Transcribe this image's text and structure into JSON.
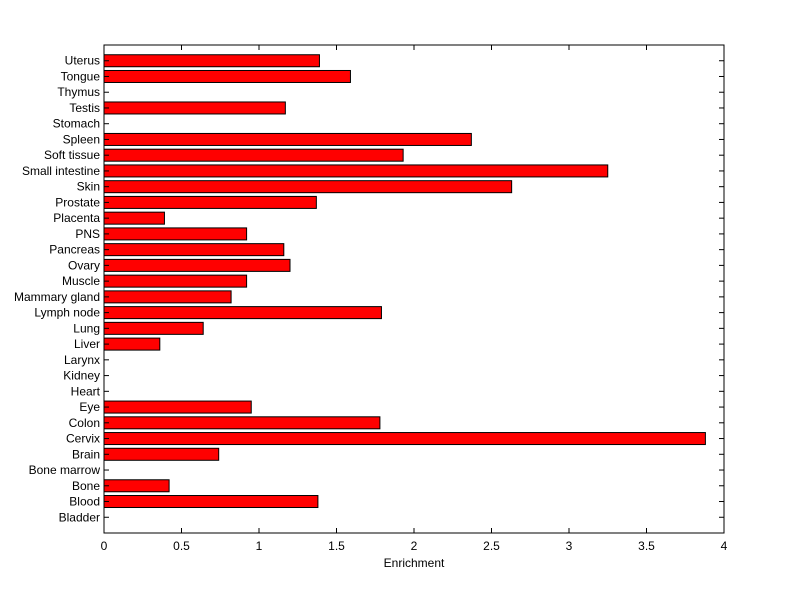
{
  "chart_data": {
    "type": "bar",
    "orientation": "horizontal",
    "title": "",
    "xlabel": "Enrichment",
    "ylabel": "",
    "xlim": [
      0,
      4
    ],
    "xticks": [
      "0",
      "0.5",
      "1",
      "1.5",
      "2",
      "2.5",
      "3",
      "3.5",
      "4"
    ],
    "grid": false,
    "legend": "none",
    "bar_color": "#ff0000",
    "bar_edge_color": "#000000",
    "categories": [
      "Bladder",
      "Blood",
      "Bone",
      "Bone marrow",
      "Brain",
      "Cervix",
      "Colon",
      "Eye",
      "Heart",
      "Kidney",
      "Larynx",
      "Liver",
      "Lung",
      "Lymph node",
      "Mammary gland",
      "Muscle",
      "Ovary",
      "Pancreas",
      "PNS",
      "Placenta",
      "Prostate",
      "Skin",
      "Small intestine",
      "Soft tissue",
      "Spleen",
      "Stomach",
      "Testis",
      "Thymus",
      "Tongue",
      "Uterus"
    ],
    "values": [
      0,
      1.38,
      0.42,
      0,
      0.74,
      3.88,
      1.78,
      0.95,
      0,
      0,
      0,
      0.36,
      0.64,
      1.79,
      0.82,
      0.92,
      1.2,
      1.16,
      0.92,
      0.39,
      1.37,
      2.63,
      3.25,
      1.93,
      2.37,
      0,
      1.17,
      0,
      1.59,
      1.39
    ]
  }
}
